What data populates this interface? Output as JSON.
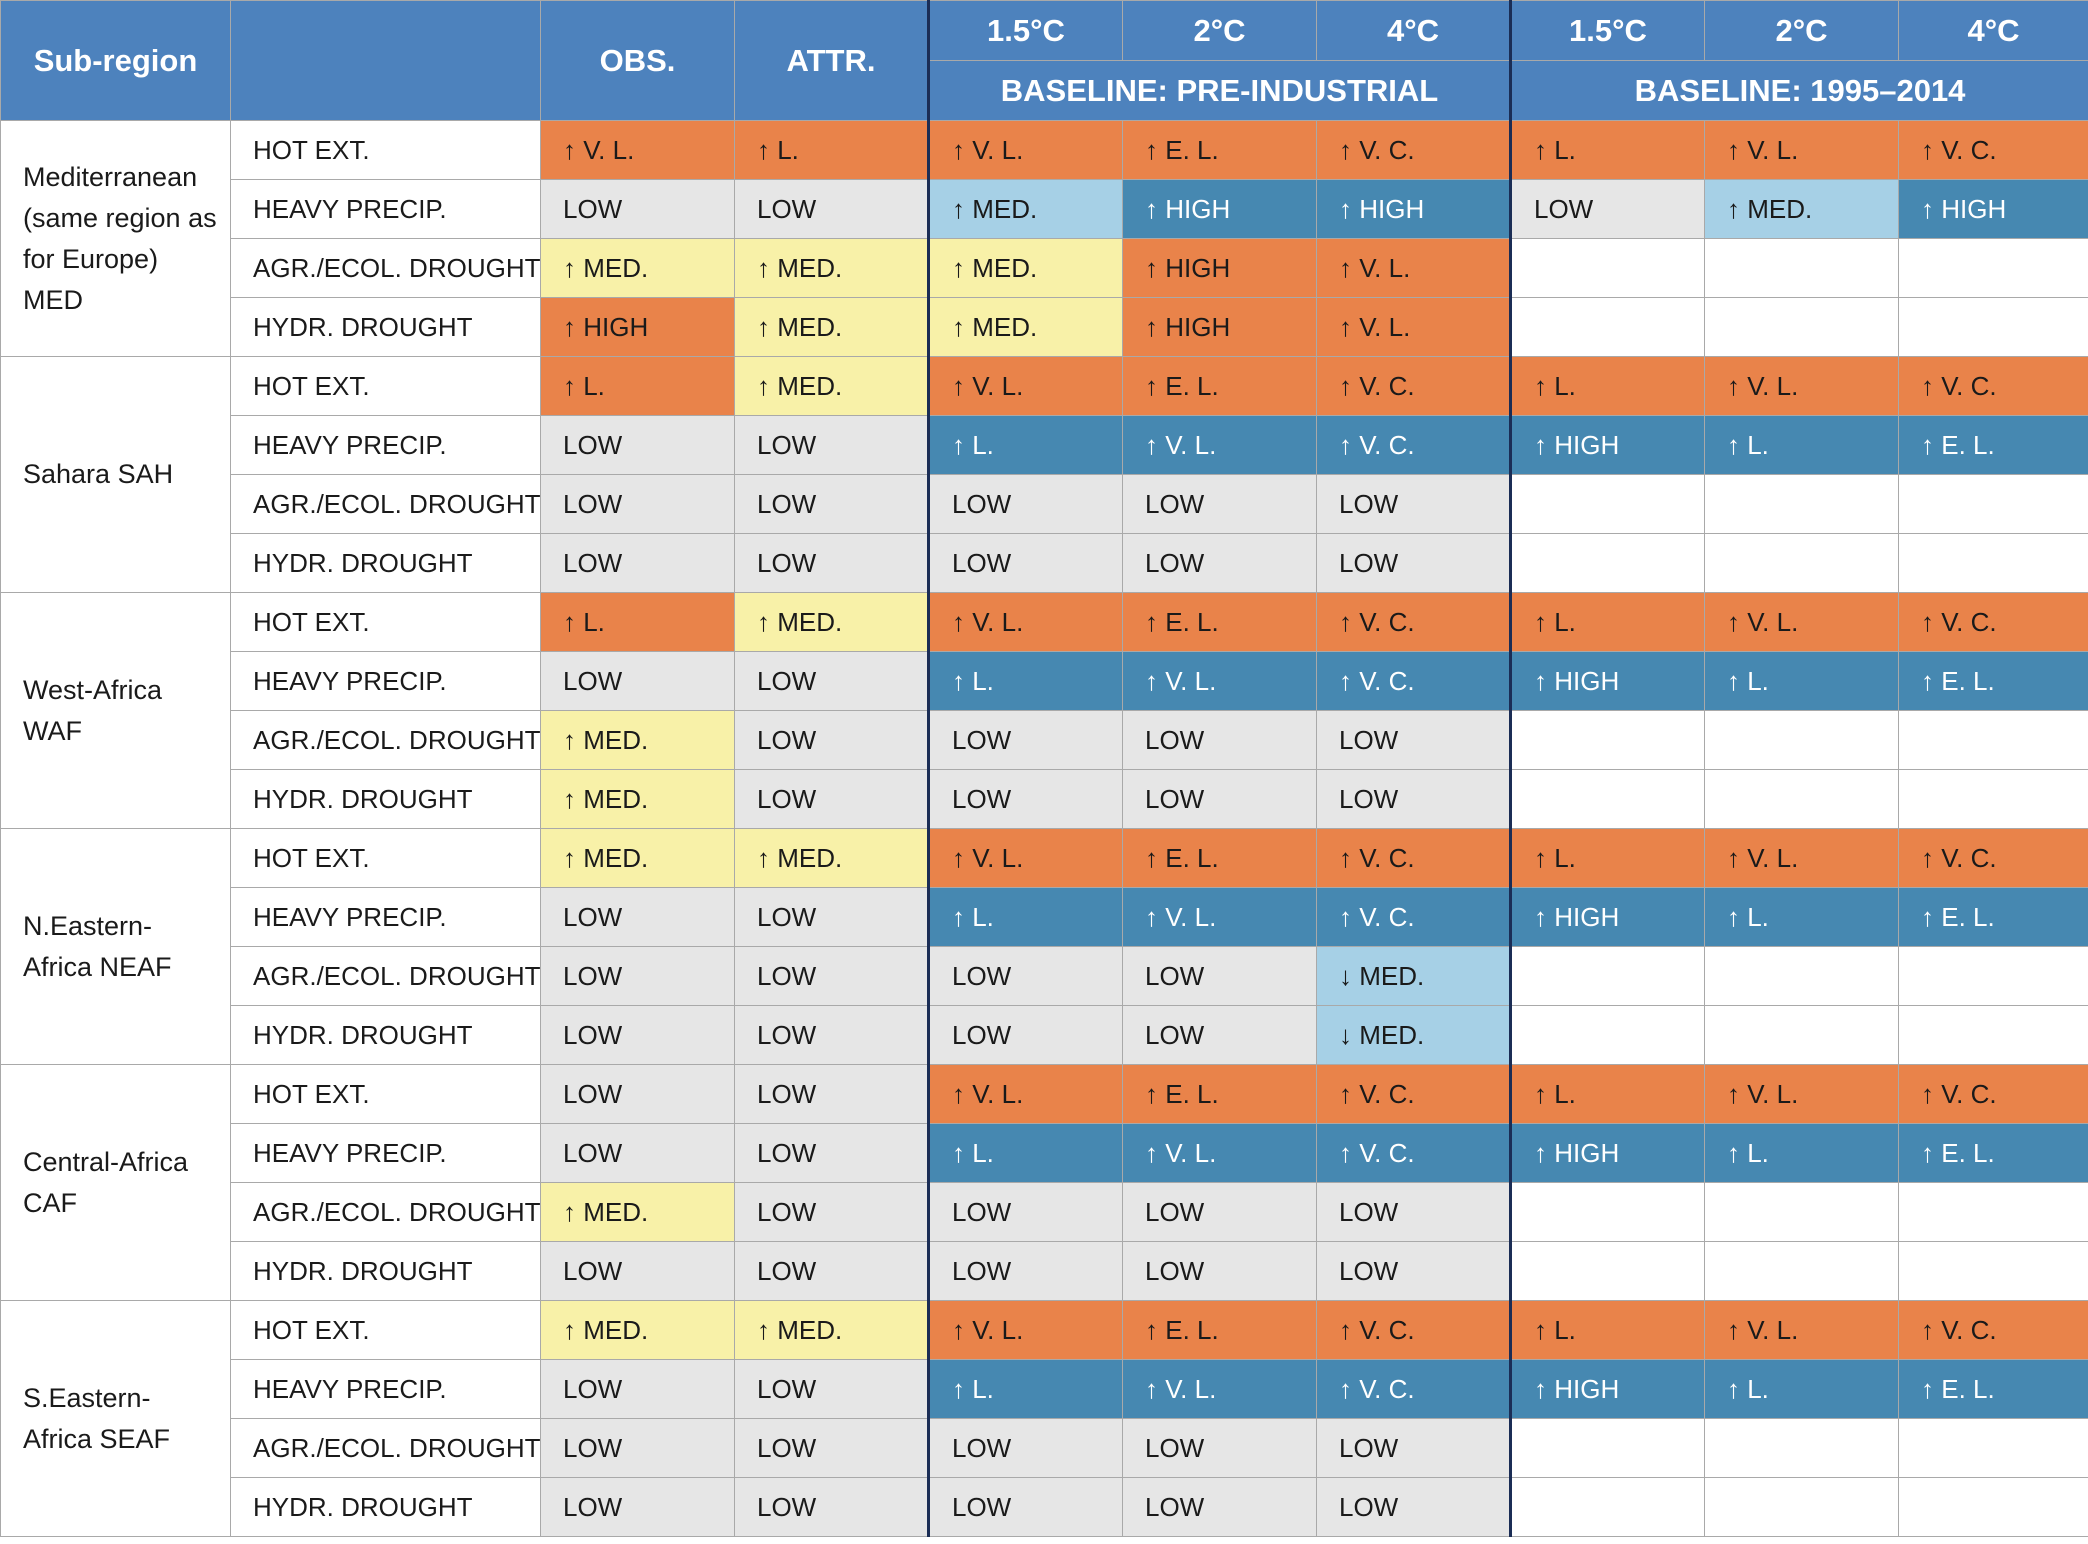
{
  "header": {
    "subregion_label": "Sub-region",
    "variable_label": "",
    "obs_label": "OBS.",
    "attr_label": "ATTR.",
    "warming_levels": [
      "1.5°C",
      "2°C",
      "4°C"
    ],
    "baseline_preindustrial": "BASELINE: PRE-INDUSTRIAL",
    "baseline_recent": "BASELINE: 1995–2014"
  },
  "colors": {
    "header_blue": "#4d82bd",
    "low_grey": "#e6e6e6",
    "medium_yellow": "#f8f1a8",
    "high_orange": "#e9834a",
    "precip_blue": "#4688b1",
    "medium_lightblue": "#a6d0e6",
    "separator": "#1b2d55"
  },
  "regions": [
    {
      "name": "Mediterranean (same region as for Europe) MED",
      "rows": [
        {
          "variable": "HOT EXT.",
          "cells": [
            [
              "↑ V. L.",
              "orange"
            ],
            [
              "↑ L.",
              "orange"
            ],
            [
              "↑ V. L.",
              "orange"
            ],
            [
              "↑ E. L.",
              "orange"
            ],
            [
              "↑ V. C.",
              "orange"
            ],
            [
              "↑ L.",
              "orange"
            ],
            [
              "↑ V. L.",
              "orange"
            ],
            [
              "↑ V. C.",
              "orange"
            ]
          ]
        },
        {
          "variable": "HEAVY PRECIP.",
          "cells": [
            [
              "LOW",
              "low"
            ],
            [
              "LOW",
              "low"
            ],
            [
              "↑ MED.",
              "lightblue"
            ],
            [
              "↑ HIGH",
              "blue"
            ],
            [
              "↑ HIGH",
              "blue"
            ],
            [
              "LOW",
              "low"
            ],
            [
              "↑ MED.",
              "lightblue"
            ],
            [
              "↑ HIGH",
              "blue"
            ]
          ]
        },
        {
          "variable": "AGR./ECOL. DROUGHT",
          "cells": [
            [
              "↑ MED.",
              "yellow"
            ],
            [
              "↑ MED.",
              "yellow"
            ],
            [
              "↑ MED.",
              "yellow"
            ],
            [
              "↑ HIGH",
              "orange"
            ],
            [
              "↑ V. L.",
              "orange"
            ],
            [
              "",
              "empty"
            ],
            [
              "",
              "empty"
            ],
            [
              "",
              "empty"
            ]
          ]
        },
        {
          "variable": "HYDR. DROUGHT",
          "cells": [
            [
              "↑ HIGH",
              "orange"
            ],
            [
              "↑ MED.",
              "yellow"
            ],
            [
              "↑ MED.",
              "yellow"
            ],
            [
              "↑ HIGH",
              "orange"
            ],
            [
              "↑ V. L.",
              "orange"
            ],
            [
              "",
              "empty"
            ],
            [
              "",
              "empty"
            ],
            [
              "",
              "empty"
            ]
          ]
        }
      ]
    },
    {
      "name": "Sahara SAH",
      "rows": [
        {
          "variable": "HOT EXT.",
          "cells": [
            [
              "↑ L.",
              "orange"
            ],
            [
              "↑ MED.",
              "yellow"
            ],
            [
              "↑ V. L.",
              "orange"
            ],
            [
              "↑ E. L.",
              "orange"
            ],
            [
              "↑ V. C.",
              "orange"
            ],
            [
              "↑ L.",
              "orange"
            ],
            [
              "↑ V. L.",
              "orange"
            ],
            [
              "↑ V. C.",
              "orange"
            ]
          ]
        },
        {
          "variable": "HEAVY PRECIP.",
          "cells": [
            [
              "LOW",
              "low"
            ],
            [
              "LOW",
              "low"
            ],
            [
              "↑ L.",
              "blue"
            ],
            [
              "↑ V. L.",
              "blue"
            ],
            [
              "↑ V. C.",
              "blue"
            ],
            [
              "↑ HIGH",
              "blue"
            ],
            [
              "↑ L.",
              "blue"
            ],
            [
              "↑ E. L.",
              "blue"
            ]
          ]
        },
        {
          "variable": "AGR./ECOL. DROUGHT",
          "cells": [
            [
              "LOW",
              "low"
            ],
            [
              "LOW",
              "low"
            ],
            [
              "LOW",
              "low"
            ],
            [
              "LOW",
              "low"
            ],
            [
              "LOW",
              "low"
            ],
            [
              "",
              "empty"
            ],
            [
              "",
              "empty"
            ],
            [
              "",
              "empty"
            ]
          ]
        },
        {
          "variable": "HYDR. DROUGHT",
          "cells": [
            [
              "LOW",
              "low"
            ],
            [
              "LOW",
              "low"
            ],
            [
              "LOW",
              "low"
            ],
            [
              "LOW",
              "low"
            ],
            [
              "LOW",
              "low"
            ],
            [
              "",
              "empty"
            ],
            [
              "",
              "empty"
            ],
            [
              "",
              "empty"
            ]
          ]
        }
      ]
    },
    {
      "name": "West-Africa WAF",
      "rows": [
        {
          "variable": "HOT EXT.",
          "cells": [
            [
              "↑ L.",
              "orange"
            ],
            [
              "↑ MED.",
              "yellow"
            ],
            [
              "↑ V. L.",
              "orange"
            ],
            [
              "↑ E. L.",
              "orange"
            ],
            [
              "↑ V. C.",
              "orange"
            ],
            [
              "↑ L.",
              "orange"
            ],
            [
              "↑ V. L.",
              "orange"
            ],
            [
              "↑ V. C.",
              "orange"
            ]
          ]
        },
        {
          "variable": "HEAVY PRECIP.",
          "cells": [
            [
              "LOW",
              "low"
            ],
            [
              "LOW",
              "low"
            ],
            [
              "↑ L.",
              "blue"
            ],
            [
              "↑ V. L.",
              "blue"
            ],
            [
              "↑ V. C.",
              "blue"
            ],
            [
              "↑ HIGH",
              "blue"
            ],
            [
              "↑ L.",
              "blue"
            ],
            [
              "↑ E. L.",
              "blue"
            ]
          ]
        },
        {
          "variable": "AGR./ECOL. DROUGHT",
          "cells": [
            [
              "↑ MED.",
              "yellow"
            ],
            [
              "LOW",
              "low"
            ],
            [
              "LOW",
              "low"
            ],
            [
              "LOW",
              "low"
            ],
            [
              "LOW",
              "low"
            ],
            [
              "",
              "empty"
            ],
            [
              "",
              "empty"
            ],
            [
              "",
              "empty"
            ]
          ]
        },
        {
          "variable": "HYDR. DROUGHT",
          "cells": [
            [
              "↑ MED.",
              "yellow"
            ],
            [
              "LOW",
              "low"
            ],
            [
              "LOW",
              "low"
            ],
            [
              "LOW",
              "low"
            ],
            [
              "LOW",
              "low"
            ],
            [
              "",
              "empty"
            ],
            [
              "",
              "empty"
            ],
            [
              "",
              "empty"
            ]
          ]
        }
      ]
    },
    {
      "name": "N.Eastern-Africa NEAF",
      "rows": [
        {
          "variable": "HOT EXT.",
          "cells": [
            [
              "↑ MED.",
              "yellow"
            ],
            [
              "↑ MED.",
              "yellow"
            ],
            [
              "↑ V. L.",
              "orange"
            ],
            [
              "↑ E. L.",
              "orange"
            ],
            [
              "↑ V. C.",
              "orange"
            ],
            [
              "↑ L.",
              "orange"
            ],
            [
              "↑ V. L.",
              "orange"
            ],
            [
              "↑ V. C.",
              "orange"
            ]
          ]
        },
        {
          "variable": "HEAVY PRECIP.",
          "cells": [
            [
              "LOW",
              "low"
            ],
            [
              "LOW",
              "low"
            ],
            [
              "↑ L.",
              "blue"
            ],
            [
              "↑ V. L.",
              "blue"
            ],
            [
              "↑ V. C.",
              "blue"
            ],
            [
              "↑ HIGH",
              "blue"
            ],
            [
              "↑ L.",
              "blue"
            ],
            [
              "↑ E. L.",
              "blue"
            ]
          ]
        },
        {
          "variable": "AGR./ECOL. DROUGHT",
          "cells": [
            [
              "LOW",
              "low"
            ],
            [
              "LOW",
              "low"
            ],
            [
              "LOW",
              "low"
            ],
            [
              "LOW",
              "low"
            ],
            [
              "↓ MED.",
              "lightblue"
            ],
            [
              "",
              "empty"
            ],
            [
              "",
              "empty"
            ],
            [
              "",
              "empty"
            ]
          ]
        },
        {
          "variable": "HYDR. DROUGHT",
          "cells": [
            [
              "LOW",
              "low"
            ],
            [
              "LOW",
              "low"
            ],
            [
              "LOW",
              "low"
            ],
            [
              "LOW",
              "low"
            ],
            [
              "↓ MED.",
              "lightblue"
            ],
            [
              "",
              "empty"
            ],
            [
              "",
              "empty"
            ],
            [
              "",
              "empty"
            ]
          ]
        }
      ]
    },
    {
      "name": "Central-Africa CAF",
      "rows": [
        {
          "variable": "HOT EXT.",
          "cells": [
            [
              "LOW",
              "low"
            ],
            [
              "LOW",
              "low"
            ],
            [
              "↑ V. L.",
              "orange"
            ],
            [
              "↑ E. L.",
              "orange"
            ],
            [
              "↑ V. C.",
              "orange"
            ],
            [
              "↑ L.",
              "orange"
            ],
            [
              "↑ V. L.",
              "orange"
            ],
            [
              "↑ V. C.",
              "orange"
            ]
          ]
        },
        {
          "variable": "HEAVY PRECIP.",
          "cells": [
            [
              "LOW",
              "low"
            ],
            [
              "LOW",
              "low"
            ],
            [
              "↑ L.",
              "blue"
            ],
            [
              "↑ V. L.",
              "blue"
            ],
            [
              "↑ V. C.",
              "blue"
            ],
            [
              "↑ HIGH",
              "blue"
            ],
            [
              "↑ L.",
              "blue"
            ],
            [
              "↑ E. L.",
              "blue"
            ]
          ]
        },
        {
          "variable": "AGR./ECOL. DROUGHT",
          "cells": [
            [
              "↑ MED.",
              "yellow"
            ],
            [
              "LOW",
              "low"
            ],
            [
              "LOW",
              "low"
            ],
            [
              "LOW",
              "low"
            ],
            [
              "LOW",
              "low"
            ],
            [
              "",
              "empty"
            ],
            [
              "",
              "empty"
            ],
            [
              "",
              "empty"
            ]
          ]
        },
        {
          "variable": "HYDR. DROUGHT",
          "cells": [
            [
              "LOW",
              "low"
            ],
            [
              "LOW",
              "low"
            ],
            [
              "LOW",
              "low"
            ],
            [
              "LOW",
              "low"
            ],
            [
              "LOW",
              "low"
            ],
            [
              "",
              "empty"
            ],
            [
              "",
              "empty"
            ],
            [
              "",
              "empty"
            ]
          ]
        }
      ]
    },
    {
      "name": "S.Eastern-Africa SEAF",
      "rows": [
        {
          "variable": "HOT EXT.",
          "cells": [
            [
              "↑ MED.",
              "yellow"
            ],
            [
              "↑ MED.",
              "yellow"
            ],
            [
              "↑ V. L.",
              "orange"
            ],
            [
              "↑ E. L.",
              "orange"
            ],
            [
              "↑ V. C.",
              "orange"
            ],
            [
              "↑ L.",
              "orange"
            ],
            [
              "↑ V. L.",
              "orange"
            ],
            [
              "↑ V. C.",
              "orange"
            ]
          ]
        },
        {
          "variable": "HEAVY PRECIP.",
          "cells": [
            [
              "LOW",
              "low"
            ],
            [
              "LOW",
              "low"
            ],
            [
              "↑ L.",
              "blue"
            ],
            [
              "↑ V. L.",
              "blue"
            ],
            [
              "↑ V. C.",
              "blue"
            ],
            [
              "↑ HIGH",
              "blue"
            ],
            [
              "↑ L.",
              "blue"
            ],
            [
              "↑ E. L.",
              "blue"
            ]
          ]
        },
        {
          "variable": "AGR./ECOL. DROUGHT",
          "cells": [
            [
              "LOW",
              "low"
            ],
            [
              "LOW",
              "low"
            ],
            [
              "LOW",
              "low"
            ],
            [
              "LOW",
              "low"
            ],
            [
              "LOW",
              "low"
            ],
            [
              "",
              "empty"
            ],
            [
              "",
              "empty"
            ],
            [
              "",
              "empty"
            ]
          ]
        },
        {
          "variable": "HYDR. DROUGHT",
          "cells": [
            [
              "LOW",
              "low"
            ],
            [
              "LOW",
              "low"
            ],
            [
              "LOW",
              "low"
            ],
            [
              "LOW",
              "low"
            ],
            [
              "LOW",
              "low"
            ],
            [
              "",
              "empty"
            ],
            [
              "",
              "empty"
            ],
            [
              "",
              "empty"
            ]
          ]
        }
      ]
    }
  ]
}
